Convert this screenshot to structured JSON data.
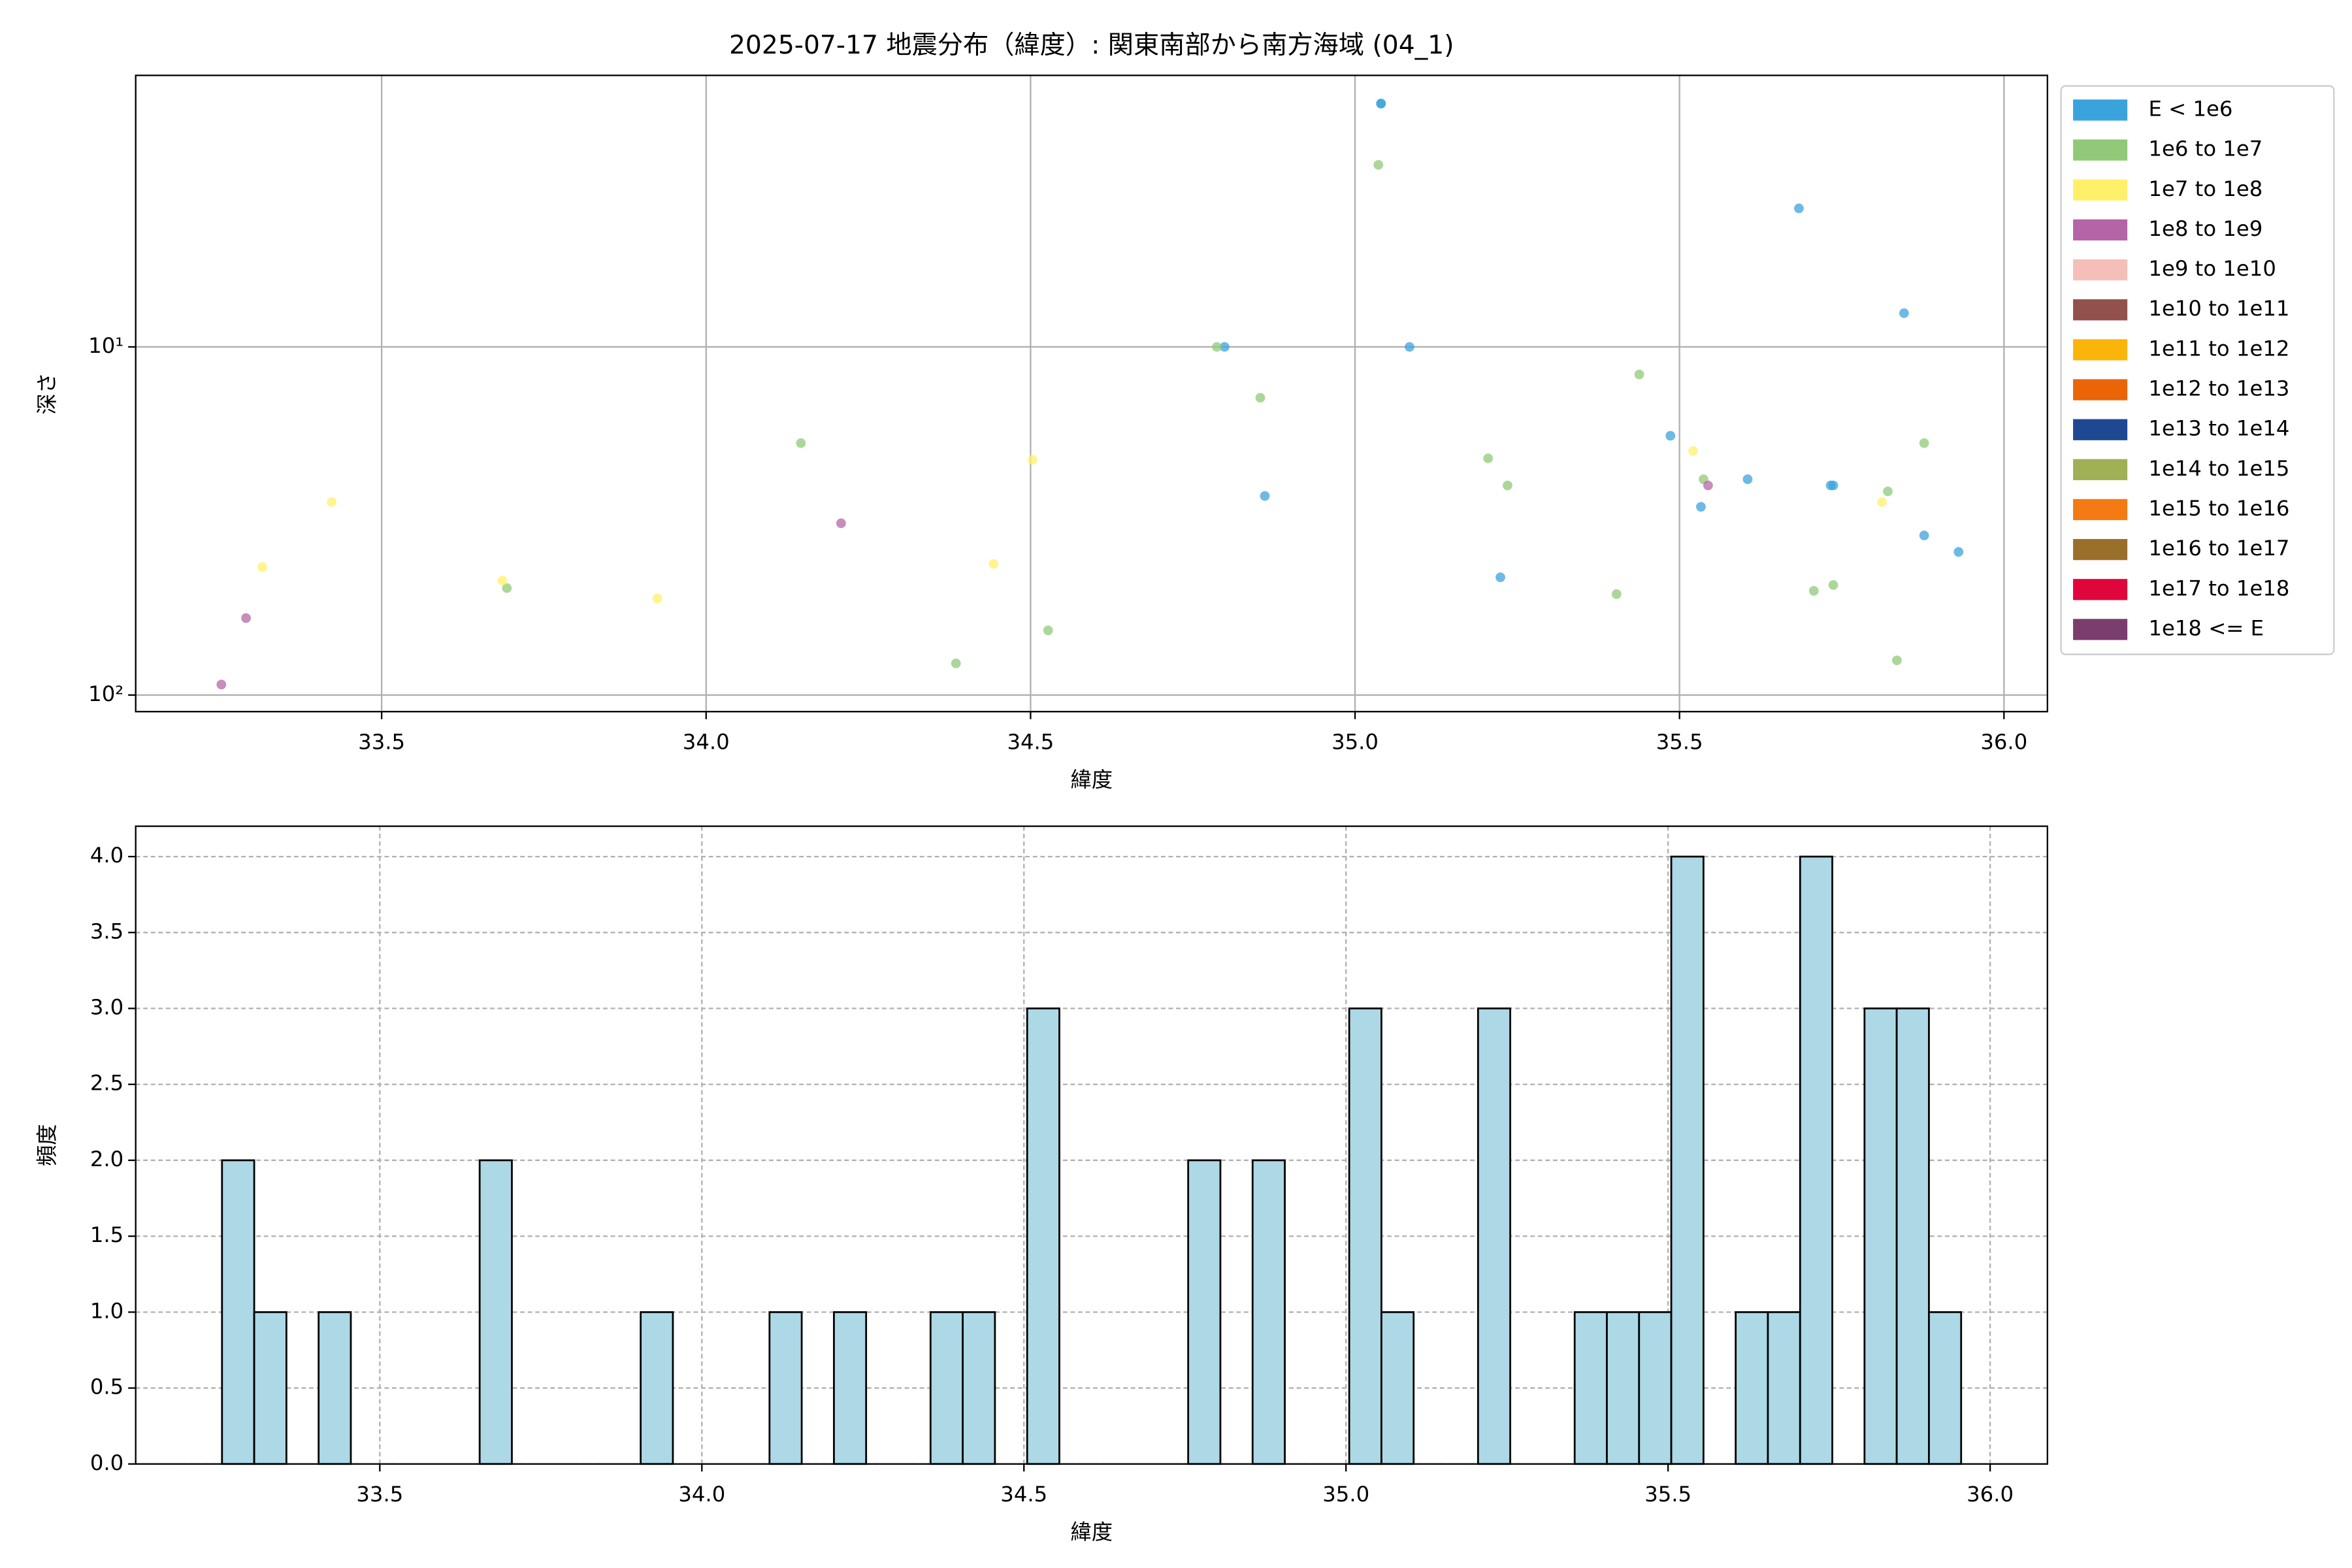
{
  "chart_data": [
    {
      "type": "scatter",
      "title": "2025-07-17 地震分布（緯度）: 関東南部から南方海域 (04_1)",
      "xlabel": "緯度",
      "ylabel": "深さ",
      "xlim": [
        33.121,
        36.067
      ],
      "ylim": [
        1.66,
        111.6
      ],
      "log_y": true,
      "invert_y": true,
      "grid": true,
      "legend": "outside-right",
      "xticks": [
        33.5,
        {
          "value": 34,
          "label": "34.0"
        },
        34.5,
        {
          "value": 35,
          "label": "35.0"
        },
        35.5,
        {
          "value": 36,
          "label": "36.0"
        }
      ],
      "yticks": [
        {
          "value": 10,
          "label": "10¹"
        },
        {
          "value": 100,
          "label": "10²"
        }
      ],
      "series": [
        {
          "name": "E < 1e6",
          "color": "#3ba3dc",
          "x": [
            35.04,
            35.04,
            35.084,
            34.799,
            34.861,
            35.684,
            35.846,
            35.486,
            35.605,
            35.733,
            35.737,
            35.533,
            35.224,
            35.877,
            35.93
          ],
          "values": [
            2.0,
            2.0,
            10,
            10,
            26.8,
            4.0,
            8.0,
            18.0,
            24.0,
            25.0,
            25.0,
            28.8,
            45.9,
            34.8,
            38.8
          ]
        },
        {
          "name": "1e6 to 1e7",
          "color": "#90c978",
          "x": [
            35.036,
            34.787,
            34.854,
            35.438,
            34.146,
            35.205,
            35.235,
            35.537,
            35.877,
            35.821,
            33.693,
            34.527,
            34.385,
            35.403,
            35.707,
            35.737,
            35.835
          ],
          "values": [
            3.0,
            10,
            14.0,
            12.0,
            18.9,
            20.9,
            25.0,
            24.0,
            18.9,
            26.0,
            49.3,
            65.2,
            81.1,
            51.3,
            50.2,
            48.3,
            79.5
          ]
        },
        {
          "name": "1e7 to 1e8",
          "color": "#fff06a",
          "x": [
            33.423,
            33.316,
            33.686,
            33.925,
            34.503,
            34.443,
            35.521,
            35.812
          ],
          "values": [
            27.9,
            42.9,
            46.9,
            52.8,
            21.1,
            42.0,
            19.9,
            27.9
          ]
        },
        {
          "name": "1e8 to 1e9",
          "color": "#b565a7",
          "x": [
            33.253,
            33.291,
            34.208,
            35.544
          ],
          "values": [
            93.3,
            60.1,
            32.1,
            25.0
          ]
        },
        {
          "name": "1e9 to 1e10",
          "color": "#f5bfb9",
          "x": [],
          "values": []
        },
        {
          "name": "1e10 to 1e11",
          "color": "#93514b",
          "x": [],
          "values": []
        },
        {
          "name": "1e11 to 1e12",
          "color": "#fbb40a",
          "x": [],
          "values": []
        },
        {
          "name": "1e12 to 1e13",
          "color": "#eb6408",
          "x": [],
          "values": []
        },
        {
          "name": "1e13 to 1e14",
          "color": "#1e4892",
          "x": [],
          "values": []
        },
        {
          "name": "1e14 to 1e15",
          "color": "#9fb055",
          "x": [],
          "values": []
        },
        {
          "name": "1e15 to 1e16",
          "color": "#f47a14",
          "x": [],
          "values": []
        },
        {
          "name": "1e16 to 1e17",
          "color": "#9a6f2a",
          "x": [],
          "values": []
        },
        {
          "name": "1e17 to 1e18",
          "color": "#e0053b",
          "x": [],
          "values": []
        },
        {
          "name": "1e18 <= E",
          "color": "#7b3d6e",
          "x": [],
          "values": []
        }
      ]
    },
    {
      "type": "histogram",
      "xlabel": "緯度",
      "ylabel": "頻度",
      "xlim": [
        33.121,
        36.089
      ],
      "ylim": [
        0,
        4.2
      ],
      "grid": true,
      "color": "#add8e6",
      "edgecolor": "#000000",
      "xticks": [
        33.5,
        {
          "value": 34,
          "label": "34.0"
        },
        34.5,
        {
          "value": 35,
          "label": "35.0"
        },
        35.5,
        {
          "value": 36,
          "label": "36.0"
        }
      ],
      "yticks": [
        {
          "value": 0,
          "label": "0.0"
        },
        0.5,
        {
          "value": 1,
          "label": "1.0"
        },
        1.5,
        {
          "value": 2,
          "label": "2.0"
        },
        2.5,
        {
          "value": 3,
          "label": "3.0"
        },
        3.5,
        {
          "value": 4,
          "label": "4.0"
        }
      ],
      "bins": [
        33.255,
        33.305,
        33.355,
        33.405,
        33.455,
        33.505,
        33.555,
        33.605,
        33.655,
        33.705,
        33.755,
        33.805,
        33.855,
        33.905,
        33.955,
        34.005,
        34.055,
        34.105,
        34.155,
        34.205,
        34.255,
        34.305,
        34.355,
        34.405,
        34.455,
        34.505,
        34.555,
        34.605,
        34.655,
        34.705,
        34.755,
        34.805,
        34.855,
        34.905,
        34.955,
        35.005,
        35.055,
        35.105,
        35.155,
        35.205,
        35.255,
        35.305,
        35.355,
        35.405,
        35.455,
        35.505,
        35.555,
        35.605,
        35.655,
        35.705,
        35.755,
        35.805,
        35.855,
        35.905,
        35.955
      ],
      "values": [
        2,
        1,
        0,
        1,
        0,
        0,
        0,
        0,
        2,
        0,
        0,
        0,
        0,
        1,
        0,
        0,
        0,
        1,
        0,
        1,
        0,
        0,
        1,
        1,
        0,
        3,
        0,
        0,
        0,
        0,
        2,
        0,
        2,
        0,
        0,
        3,
        1,
        0,
        0,
        3,
        0,
        0,
        1,
        1,
        1,
        4,
        0,
        1,
        1,
        4,
        0,
        3,
        3,
        1
      ]
    }
  ]
}
